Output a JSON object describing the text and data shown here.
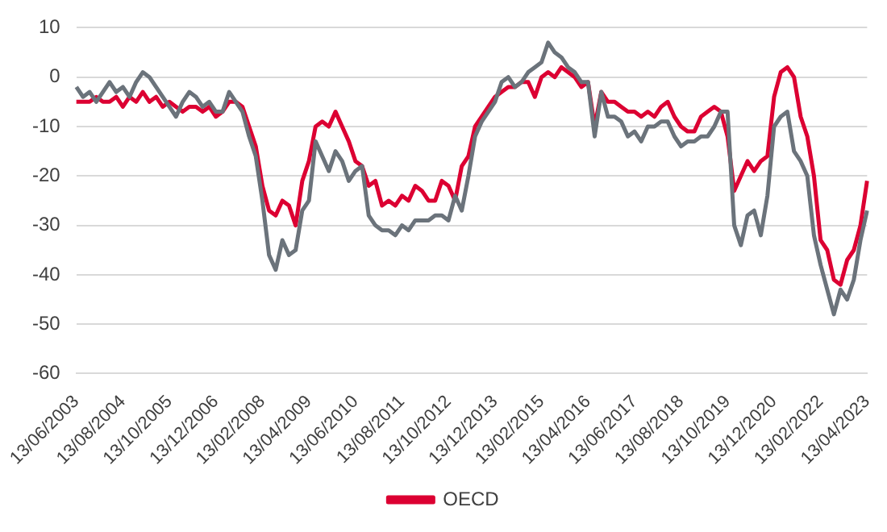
{
  "chart_data": {
    "type": "line",
    "categories": [
      "13/06/2003",
      null,
      null,
      null,
      null,
      null,
      null,
      "13/08/2004",
      null,
      null,
      null,
      null,
      null,
      null,
      "13/10/2005",
      null,
      null,
      null,
      null,
      null,
      null,
      "13/12/2006",
      null,
      null,
      null,
      null,
      null,
      null,
      "13/02/2008",
      null,
      null,
      null,
      null,
      null,
      null,
      "13/04/2009",
      null,
      null,
      null,
      null,
      null,
      null,
      "13/06/2010",
      null,
      null,
      null,
      null,
      null,
      null,
      "13/08/2011",
      null,
      null,
      null,
      null,
      null,
      null,
      "13/10/2012",
      null,
      null,
      null,
      null,
      null,
      null,
      "13/12/2013",
      null,
      null,
      null,
      null,
      null,
      null,
      "13/02/2015",
      null,
      null,
      null,
      null,
      null,
      null,
      "13/04/2016",
      null,
      null,
      null,
      null,
      null,
      null,
      "13/06/2017",
      null,
      null,
      null,
      null,
      null,
      null,
      "13/08/2018",
      null,
      null,
      null,
      null,
      null,
      null,
      "13/10/2019",
      null,
      null,
      null,
      null,
      null,
      null,
      "13/12/2020",
      null,
      null,
      null,
      null,
      null,
      null,
      "13/02/2022",
      null,
      null,
      null,
      null,
      null,
      null,
      "13/04/2023"
    ],
    "series": [
      {
        "color": "#6b737b",
        "values": [
          -2,
          -4,
          -3,
          -5,
          -3,
          -1,
          -3,
          -2,
          -4,
          -1,
          1,
          0,
          -2,
          -4,
          -6,
          -8,
          -5,
          -3,
          -4,
          -6,
          -5,
          -7,
          -7,
          -3,
          -5,
          -7,
          -12,
          -16,
          -25,
          -36,
          -39,
          -33,
          -36,
          -35,
          -27,
          -25,
          -13,
          -16,
          -19,
          -15,
          -17,
          -21,
          -19,
          -18,
          -28,
          -30,
          -31,
          -31,
          -32,
          -30,
          -31,
          -29,
          -29,
          -29,
          -28,
          -28,
          -29,
          -24,
          -27,
          -20,
          -12,
          -9,
          -7,
          -5,
          -1,
          0,
          -2,
          -1,
          1,
          2,
          3,
          7,
          5,
          4,
          2,
          1,
          -1,
          -1,
          -12,
          -3,
          -8,
          -8,
          -9,
          -12,
          -11,
          -13,
          -10,
          -10,
          -9,
          -9,
          -12,
          -14,
          -13,
          -13,
          -12,
          -12,
          -10,
          -7,
          -7,
          -30,
          -34,
          -28,
          -27,
          -32,
          -24,
          -10,
          -8,
          -7,
          -15,
          -17,
          -20,
          -32,
          -38,
          -43,
          -48,
          -43,
          -45,
          -41,
          -33,
          -27
        ]
      },
      {
        "name": "OECD",
        "color": "#dc0032",
        "values": [
          -5,
          -5,
          -5,
          -4,
          -5,
          -5,
          -4,
          -6,
          -4,
          -5,
          -3,
          -5,
          -4,
          -6,
          -5,
          -6,
          -7,
          -6,
          -6,
          -7,
          -6,
          -8,
          -7,
          -5,
          -5,
          -6,
          -10,
          -14,
          -22,
          -27,
          -28,
          -25,
          -26,
          -30,
          -21,
          -17,
          -10,
          -9,
          -10,
          -7,
          -10,
          -13,
          -17,
          -18,
          -22,
          -21,
          -26,
          -25,
          -26,
          -24,
          -25,
          -22,
          -23,
          -25,
          -25,
          -21,
          -22,
          -25,
          -18,
          -16,
          -10,
          -8,
          -6,
          -4,
          -3,
          -2,
          -2,
          -1,
          -1,
          -4,
          0,
          1,
          0,
          2,
          1,
          0,
          -2,
          -1,
          -10,
          -3,
          -5,
          -5,
          -6,
          -7,
          -7,
          -8,
          -7,
          -8,
          -6,
          -5,
          -8,
          -10,
          -11,
          -11,
          -8,
          -7,
          -6,
          -7,
          -12,
          -23,
          -20,
          -17,
          -19,
          -17,
          -16,
          -4,
          1,
          2,
          0,
          -8,
          -12,
          -20,
          -33,
          -35,
          -41,
          -42,
          -37,
          -35,
          -30,
          -21
        ]
      }
    ],
    "ylim": [
      -60,
      10
    ],
    "yticks": [
      -60,
      -50,
      -40,
      -30,
      -20,
      -10,
      0,
      10
    ],
    "grid": "y",
    "legend": "bottom"
  }
}
